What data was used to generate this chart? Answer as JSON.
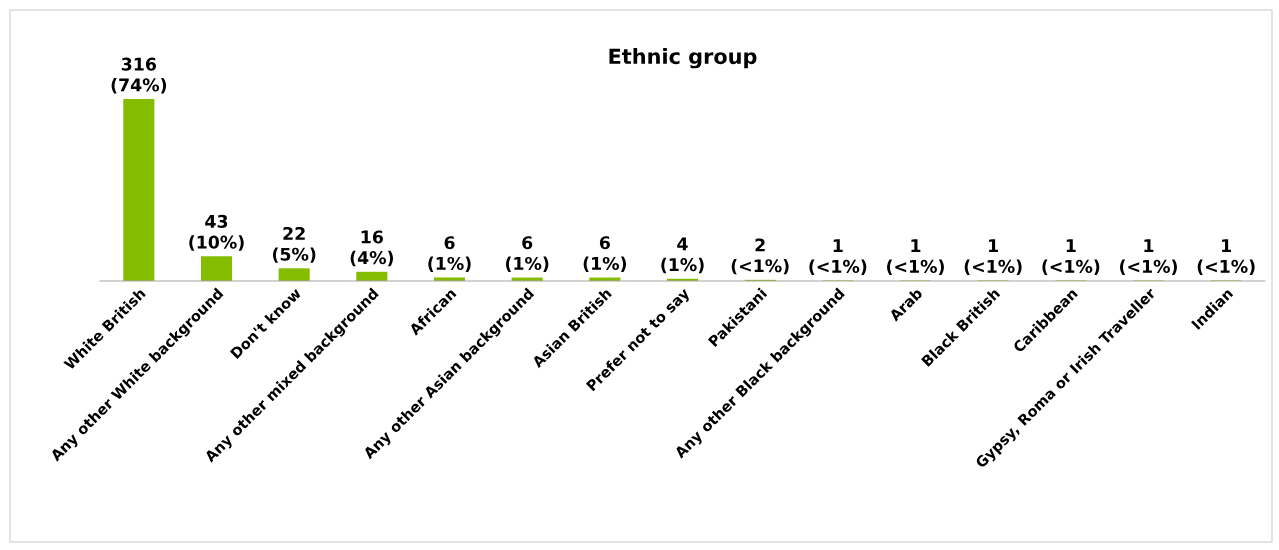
{
  "chart_data": {
    "type": "bar",
    "title": "Ethnic group",
    "categories": [
      "White British",
      "Any other White background",
      "Don't know",
      "Any other mixed background",
      "African",
      "Any other Asian background",
      "Asian British",
      "Prefer not to say",
      "Pakistani",
      "Any other Black background",
      "Arab",
      "Black British",
      "Caribbean",
      "Gypsy, Roma or Irish Traveller",
      "Indian"
    ],
    "values": [
      316,
      43,
      22,
      16,
      6,
      6,
      6,
      4,
      2,
      1,
      1,
      1,
      1,
      1,
      1
    ],
    "value_labels": [
      "316\n(74%)",
      "43\n(10%)",
      "22\n(5%)",
      "16\n(4%)",
      "6\n(1%)",
      "6\n(1%)",
      "6\n(1%)",
      "4\n(1%)",
      "2\n(<1%)",
      "1\n(<1%)",
      "1\n(<1%)",
      "1\n(<1%)",
      "1\n(<1%)",
      "1\n(<1%)",
      "1\n(<1%)"
    ],
    "color": "#84bd00"
  }
}
